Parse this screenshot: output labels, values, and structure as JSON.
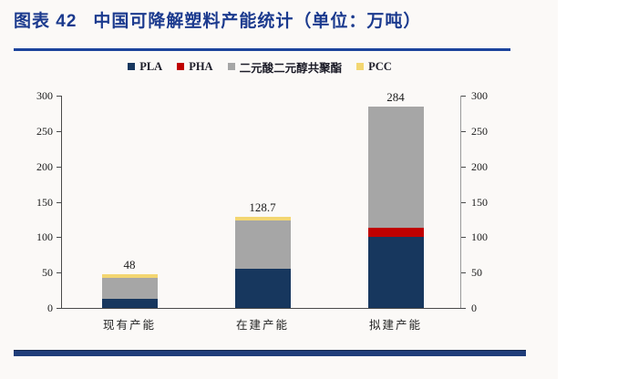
{
  "page": {
    "figure_label": "图表 42",
    "figure_title": "中国可降解塑料产能统计（单位：万吨）"
  },
  "chart_data": {
    "type": "bar",
    "stacked": true,
    "title": "中国可降解塑料产能统计",
    "unit": "万吨",
    "categories": [
      "现有产能",
      "在建产能",
      "拟建产能"
    ],
    "series": [
      {
        "name": "PLA",
        "color": "#17375e",
        "values": [
          13,
          55,
          100
        ]
      },
      {
        "name": "PHA",
        "color": "#c00000",
        "values": [
          0,
          0,
          13
        ]
      },
      {
        "name": "二元酸二元醇共聚酯",
        "color": "#a6a6a6",
        "values": [
          30,
          68.7,
          171
        ]
      },
      {
        "name": "PCC",
        "color": "#f3d671",
        "values": [
          5,
          5,
          0
        ]
      }
    ],
    "total_labels": [
      "48",
      "128.7",
      "284"
    ],
    "ylim": [
      0,
      300
    ],
    "yticks": [
      0,
      50,
      100,
      150,
      200,
      250,
      300
    ],
    "legend_position": "top",
    "grid": false,
    "right_axis": true,
    "xlabel": "",
    "ylabel": ""
  }
}
